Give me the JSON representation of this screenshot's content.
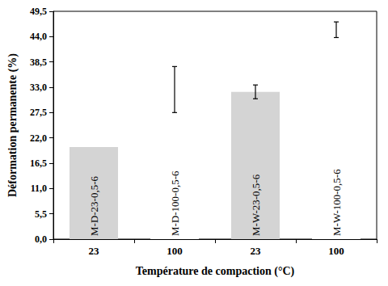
{
  "chart_data": {
    "type": "bar",
    "x_label": "Température de compaction (°C)",
    "y_label": "Déformation permanente (%)",
    "categories": [
      "23",
      "100",
      "23",
      "100"
    ],
    "values": [
      20,
      32.5,
      32,
      45.5
    ],
    "errors": [
      null,
      5,
      1.5,
      1.7
    ],
    "bar_labels": [
      "M-D-23-0,5-6",
      "M-D-100-0,5-6",
      "M-W-23-0,5-6",
      "M-W-100-0,5-6"
    ],
    "colors": [
      "#d4d4d4",
      "#ffffff",
      "#d4d4d4",
      "#ffffff"
    ],
    "ylim": [
      0,
      49.5
    ],
    "yticks": [
      {
        "value": 0,
        "label": "0,0"
      },
      {
        "value": 5.5,
        "label": "5,5"
      },
      {
        "value": 11,
        "label": "11,0"
      },
      {
        "value": 16.5,
        "label": "16,5"
      },
      {
        "value": 22,
        "label": "22,0"
      },
      {
        "value": 27.5,
        "label": "27,5"
      },
      {
        "value": 33,
        "label": "33,0"
      },
      {
        "value": 38.5,
        "label": "38,5"
      },
      {
        "value": 44,
        "label": "44,0"
      },
      {
        "value": 49.5,
        "label": "49,5"
      }
    ],
    "grid": false
  }
}
